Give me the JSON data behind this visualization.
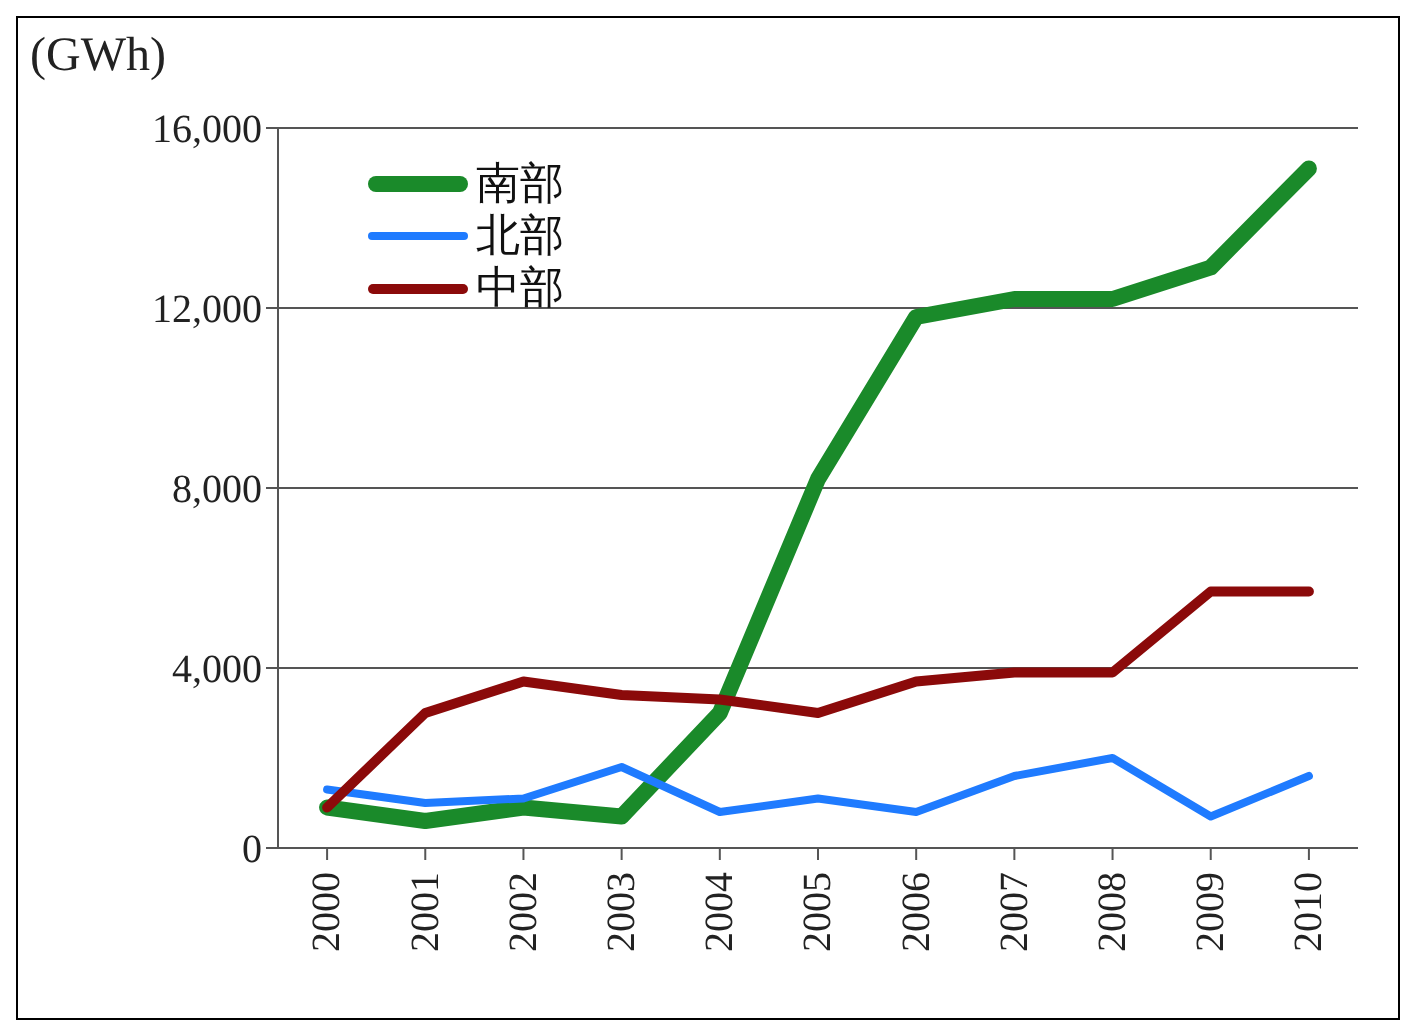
{
  "chart_data": {
    "type": "line",
    "ylabel": "(GWh)",
    "categories": [
      "2000",
      "2001",
      "2002",
      "2003",
      "2004",
      "2005",
      "2006",
      "2007",
      "2008",
      "2009",
      "2010"
    ],
    "series": [
      {
        "name": "南部",
        "color": "#1a8a2a",
        "values": [
          900,
          600,
          900,
          700,
          3000,
          8200,
          11800,
          12200,
          12200,
          12900,
          15100
        ]
      },
      {
        "name": "北部",
        "color": "#1f7bff",
        "values": [
          1300,
          1000,
          1100,
          1800,
          800,
          1100,
          800,
          1600,
          2000,
          700,
          1600
        ]
      },
      {
        "name": "中部",
        "color": "#8b0a0a",
        "values": [
          900,
          3000,
          3700,
          3400,
          3300,
          3000,
          3700,
          3900,
          3900,
          5700,
          5700
        ]
      }
    ],
    "ylim": [
      0,
      16000
    ],
    "yticks": [
      0,
      {
        "value": 4000,
        "label": "4,000"
      },
      {
        "value": 8000,
        "label": "8,000"
      },
      {
        "value": 12000,
        "label": "12,000"
      },
      {
        "value": 16000,
        "label": "16,000"
      }
    ],
    "grid": "y",
    "legend": "top left",
    "marker": "none",
    "line_style": "solid"
  }
}
